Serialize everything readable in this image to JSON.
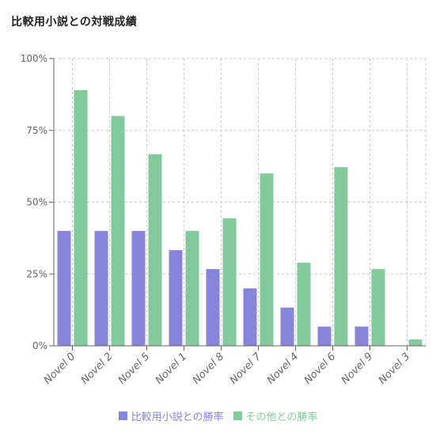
{
  "chart_data": {
    "type": "bar",
    "title": "比較用小説との対戦成績",
    "xlabel": "",
    "ylabel": "",
    "ylim": [
      0,
      100
    ],
    "y_ticks": [
      "0%",
      "25%",
      "50%",
      "75%",
      "100%"
    ],
    "grid": true,
    "legend_position": "bottom",
    "categories": [
      "Novel 0",
      "Novel 2",
      "Novel 5",
      "Novel 1",
      "Novel 8",
      "Novel 7",
      "Novel 4",
      "Novel 6",
      "Novel 9",
      "Novel 3"
    ],
    "series": [
      {
        "name": "比較用小説との勝率",
        "color": "#8884d8",
        "values": [
          40,
          40,
          40,
          33.3,
          26.7,
          20,
          13.3,
          6.7,
          6.7,
          0
        ]
      },
      {
        "name": "その他との勝率",
        "color": "#82ca9d",
        "values": [
          89,
          80,
          66.7,
          40,
          44.4,
          60,
          28.9,
          62.2,
          26.7,
          2.2
        ]
      }
    ]
  }
}
